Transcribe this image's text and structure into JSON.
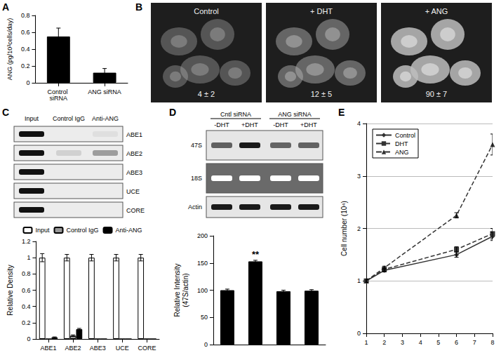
{
  "chart_data": [
    {
      "type": "bar",
      "title": "A",
      "ylabel": "ANG (pg/10³cells/day)",
      "categories": [
        "Control siRNA",
        "ANG siRNA"
      ],
      "values": [
        0.55,
        0.12
      ],
      "errors": [
        0.1,
        0.05
      ],
      "color": "#000000",
      "ylim": [
        0,
        0.8
      ],
      "yticks": [
        0,
        0.2,
        0.4,
        0.6,
        0.8
      ],
      "grid": false
    },
    {
      "type": "bar",
      "title": "C",
      "ylabel": "Relative Density",
      "categories": [
        "ABE1",
        "ABE2",
        "ABE3",
        "UCE",
        "CORE"
      ],
      "series": [
        {
          "name": "Input",
          "color": "#ffffff",
          "values": [
            1,
            1,
            1,
            1,
            1
          ],
          "errors": [
            0.05,
            0.04,
            0.04,
            0.04,
            0.04
          ]
        },
        {
          "name": "Control IgG",
          "color": "#999999",
          "values": [
            0,
            0.04,
            0,
            0,
            0
          ],
          "errors": [
            0,
            0.01,
            0,
            0,
            0
          ]
        },
        {
          "name": "Anti-ANG",
          "color": "#000000",
          "values": [
            0.02,
            0.12,
            0,
            0,
            0
          ],
          "errors": [
            0.005,
            0.01,
            0,
            0,
            0
          ]
        }
      ],
      "ylim": [
        0,
        1.2
      ],
      "yticks": [
        0,
        0.2,
        0.4,
        0.6,
        0.8,
        1,
        1.2
      ],
      "legend": "top",
      "grid": false
    },
    {
      "type": "bar",
      "title": "D",
      "ylabel": "Relative Intensity\n(47S/actin)",
      "categories": [
        null,
        null,
        null,
        null
      ],
      "values": [
        100,
        153,
        98,
        99
      ],
      "errors": [
        2,
        2,
        2,
        2
      ],
      "color": "#000000",
      "ylim": [
        0,
        200
      ],
      "yticks": [
        0,
        50,
        100,
        150,
        200
      ],
      "annotations": [
        {
          "index": 1,
          "text": "**"
        }
      ],
      "tick_labels": "y",
      "grid": false
    },
    {
      "type": "line",
      "title": "E",
      "ylabel": "Cell number (10⁴)",
      "x": [
        1,
        2,
        6,
        8
      ],
      "series": [
        {
          "name": "Control",
          "color": "#333333",
          "marker": "diamond",
          "line_style": "solid",
          "values": [
            1,
            1.2,
            1.5,
            1.85
          ],
          "errors": [
            0.03,
            0.03,
            0.05,
            0.08
          ]
        },
        {
          "name": "DHT",
          "color": "#333333",
          "marker": "square",
          "line_style": "dashed",
          "values": [
            1,
            1.22,
            1.6,
            1.9
          ],
          "errors": [
            0.03,
            0.03,
            0.05,
            0.1
          ]
        },
        {
          "name": "ANG",
          "color": "#333333",
          "marker": "triangle",
          "line_style": "dashed",
          "values": [
            1,
            1.25,
            2.25,
            3.6
          ],
          "errors": [
            0.03,
            0.03,
            0.05,
            0.2
          ]
        }
      ],
      "xlim": [
        1,
        8
      ],
      "xticks": [
        1,
        2,
        3,
        4,
        5,
        6,
        7,
        8
      ],
      "ylim": [
        0,
        4
      ],
      "yticks": [
        0,
        1,
        2,
        3,
        4
      ],
      "legend": "top-left",
      "grid": true
    }
  ],
  "panel_B": {
    "title": "B",
    "images": [
      {
        "label": "Control",
        "value": "4 ± 2"
      },
      {
        "label": "+ DHT",
        "value": "12 ± 5"
      },
      {
        "label": "+ ANG",
        "value": "90 ± 7"
      }
    ]
  },
  "panel_C_blot": {
    "columns": [
      "Input",
      "Control IgG",
      "Anti-ANG"
    ],
    "rows": [
      "ABE1",
      "ABE2",
      "ABE3",
      "UCE",
      "CORE"
    ]
  },
  "panel_D_blot": {
    "groups": [
      "Cntl siRNA",
      "ANG siRNA"
    ],
    "lanes": [
      "-DHT",
      "+DHT",
      "-DHT",
      "+DHT"
    ],
    "rows": [
      "47S",
      "18S",
      "Actin"
    ]
  }
}
